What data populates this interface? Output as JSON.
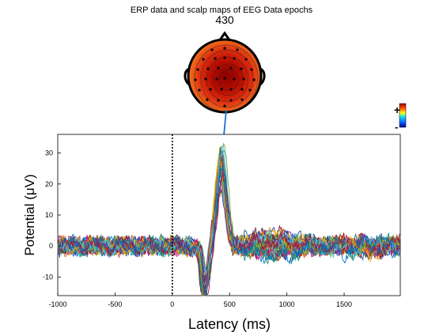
{
  "title": "ERP data and scalp maps of EEG Data epochs",
  "scalp_map": {
    "latency_label": "430",
    "colorbar_plus": "+",
    "colorbar_minus": "-",
    "colors": {
      "high": "#a50000",
      "mid": "#e23a12",
      "edge": "#f08a24",
      "outer": "#f6c347"
    }
  },
  "chart_data": {
    "type": "line",
    "title": "ERP data and scalp maps of EEG Data epochs",
    "xlabel": "Latency (ms)",
    "ylabel": "Potential (μV)",
    "xlim": [
      -1000,
      1990
    ],
    "ylim": [
      -16,
      36
    ],
    "xticks": [
      -1000,
      -500,
      0,
      500,
      1000,
      1500
    ],
    "yticks": [
      -10,
      0,
      10,
      20,
      30
    ],
    "zero_line_x": 0,
    "marked_latency_ms": 430,
    "channel_count": 32,
    "shape_note_values": {
      "peak_latency_ms": 430,
      "peak_max_uV": 35,
      "trough_latency_ms": 290,
      "trough_min_uV": -16
    },
    "series_colors": [
      "#1f4e9c",
      "#d9531e",
      "#edb120",
      "#7e2f8e",
      "#77ac30",
      "#4dbeee",
      "#a2142f",
      "#0072bd",
      "#5a3a1a",
      "#2e8b57",
      "#c71585",
      "#008b8b"
    ]
  }
}
